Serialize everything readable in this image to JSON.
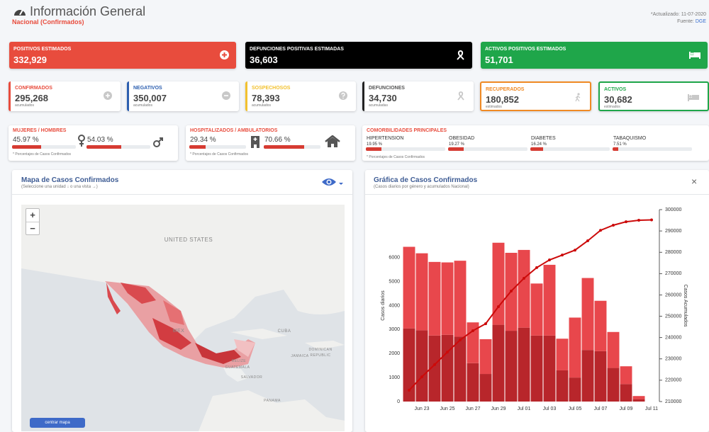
{
  "header": {
    "title": "Información General",
    "subtitle": "Nacional (Confirmados)",
    "updated": "*Actualizado: 11-07-2020",
    "source_label": "Fuente:",
    "source": "DGE"
  },
  "summary_cards": [
    {
      "label": "POSITIVOS ESTIMADOS",
      "value": "332,929"
    },
    {
      "label": "DEFUNCIONES POSITIVAS ESTIMADAS",
      "value": "36,603"
    },
    {
      "label": "ACTIVOS POSITIVOS ESTIMADOS",
      "value": "51,701"
    }
  ],
  "stat_cards": [
    {
      "label": "CONFIRMADOS",
      "value": "295,268",
      "note": "acumulados"
    },
    {
      "label": "NEGATIVOS",
      "value": "350,007",
      "note": "acumulados"
    },
    {
      "label": "SOSPECHOSOS",
      "value": "78,393",
      "note": "acumulados"
    },
    {
      "label": "DEFUNCIONES",
      "value": "34,730",
      "note": "acumuladas"
    },
    {
      "label": "RECUPERADOS",
      "value": "180,852",
      "note": "estimados"
    },
    {
      "label": "ACTIVOS",
      "value": "30,682",
      "note": "estimados"
    }
  ],
  "gender": {
    "title": "MUJERES / HOMBRES",
    "items": [
      {
        "value": 45.97,
        "label": "45.97 %"
      },
      {
        "value": 54.03,
        "label": "54.03 %"
      }
    ],
    "note": "* Porcentajes de Casos Confirmados"
  },
  "hospital": {
    "title": "HOSPITALIZADOS / AMBULATORIOS",
    "items": [
      {
        "value": 29.34,
        "label": "29.34 %"
      },
      {
        "value": 70.66,
        "label": "70.66 %"
      }
    ],
    "note": "* Porcentajes de Casos Confirmados"
  },
  "comorbidities": {
    "title": "COMORBILIDADES PRINCIPALES",
    "items": [
      {
        "name": "HIPERTENSION",
        "value": 19.95,
        "label": "19.95 %"
      },
      {
        "name": "OBESIDAD",
        "value": 19.27,
        "label": "19.27 %"
      },
      {
        "name": "DIABETES",
        "value": 16.24,
        "label": "16.24 %"
      },
      {
        "name": "TABAQUISMO",
        "value": 7.51,
        "label": "7.51 %"
      }
    ],
    "note": "* Porcentajes de Casos Confirmados"
  },
  "map_panel": {
    "title": "Mapa de Casos Confirmados",
    "subtitle": "(Seleccione una unidad ↓ o una vista →)",
    "zoom_in": "+",
    "zoom_out": "−",
    "button": "centrar mapa",
    "labels": [
      "UNITED STATES",
      "MEX",
      "CUBA",
      "JAMAICA",
      "DOMINICAN",
      "REPUBLIC",
      "BELIZE",
      "GUATEMALA",
      "SALVADOR",
      "PANAMA"
    ]
  },
  "chart_panel": {
    "title": "Gráfica de Casos Confirmados",
    "subtitle": "(Casos diarios por género y acumulados Nacional)",
    "close": "×"
  },
  "chart_data": {
    "type": "bar",
    "y_label": "Casos diarios",
    "y2_label": "Casos Acumulados",
    "categories": [
      null,
      "Jun 23",
      null,
      "Jun 25",
      null,
      "Jun 27",
      null,
      "Jun 29",
      null,
      "Jul 01",
      null,
      "Jul 03",
      null,
      "Jul 05",
      null,
      "Jul 07",
      null,
      "Jul 09",
      null,
      "Jul 11"
    ],
    "series": [
      {
        "color": "#b8262b",
        "values": [
          3050,
          2970,
          2750,
          2780,
          2700,
          1600,
          1150,
          3200,
          2950,
          3080,
          2750,
          2750,
          1300,
          1000,
          2150,
          2100,
          1400,
          730,
          100,
          null
        ]
      },
      {
        "color": "#e8474c",
        "values": [
          3400,
          3210,
          3070,
          3020,
          3170,
          1700,
          1450,
          3420,
          3250,
          3240,
          2170,
          2950,
          1320,
          2500,
          3000,
          2100,
          1500,
          740,
          130,
          null
        ]
      },
      {
        "type": "line",
        "axis": "y2",
        "color": "#cc0a0a",
        "values": [
          215300,
          221600,
          227300,
          233200,
          238900,
          243200,
          246500,
          254500,
          261800,
          267800,
          272800,
          276400,
          278700,
          281000,
          285400,
          290300,
          292700,
          294300,
          295000,
          295200
        ]
      }
    ],
    "ylim": [
      0,
      8000
    ],
    "yticks": [
      0,
      1000,
      2000,
      3000,
      4000,
      5000,
      6000
    ],
    "y2lim": [
      210000,
      300000
    ],
    "y2ticks": [
      210000,
      220000,
      230000,
      240000,
      250000,
      260000,
      270000,
      280000,
      290000,
      300000
    ],
    "grid": false
  }
}
